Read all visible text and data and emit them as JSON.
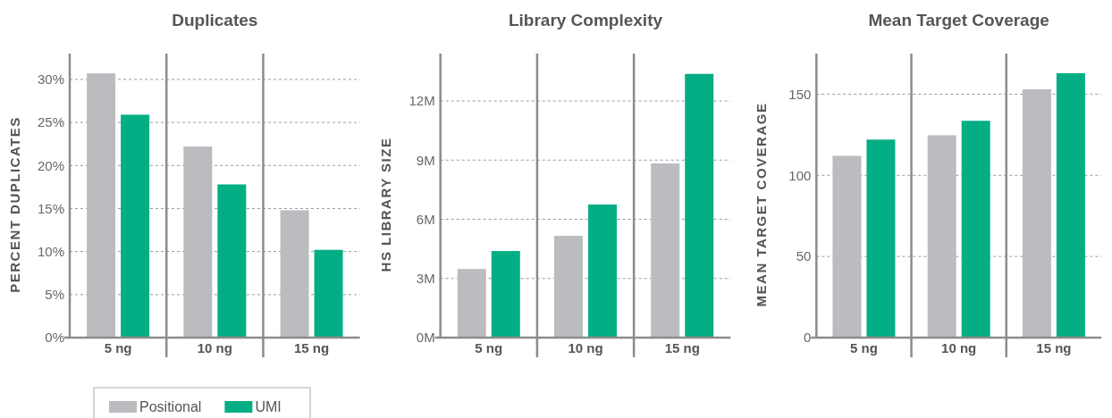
{
  "chart_data": [
    {
      "type": "bar",
      "title": "Duplicates",
      "ylabel": "PERCENT DUPLICATES",
      "categories": [
        "5 ng",
        "10 ng",
        "15 ng"
      ],
      "series": [
        {
          "name": "Positional",
          "color": "#bbbcbf",
          "values": [
            30.7,
            22.2,
            14.8
          ]
        },
        {
          "name": "UMI",
          "color": "#03ae84",
          "values": [
            25.9,
            17.8,
            10.2
          ]
        }
      ],
      "ylim": [
        0,
        33
      ],
      "yticks": [
        {
          "value": 0,
          "label": "0%"
        },
        {
          "value": 5,
          "label": "5%"
        },
        {
          "value": 10,
          "label": "10%"
        },
        {
          "value": 15,
          "label": "15%"
        },
        {
          "value": 20,
          "label": "20%"
        },
        {
          "value": 25,
          "label": "25%"
        },
        {
          "value": 30,
          "label": "30%"
        }
      ],
      "grid": "y",
      "legend": "bottom"
    },
    {
      "type": "bar",
      "title": "Library Complexity",
      "ylabel": "HS LIBRARY SIZE",
      "categories": [
        "5 ng",
        "10 ng",
        "15 ng"
      ],
      "series": [
        {
          "color": "#bbbcbf",
          "values": [
            3.48,
            5.16,
            8.83
          ]
        },
        {
          "color": "#03ae84",
          "values": [
            4.39,
            6.75,
            13.37
          ]
        }
      ],
      "ylim": [
        0,
        14.4
      ],
      "yticks": [
        {
          "value": 0,
          "label": "0M"
        },
        {
          "value": 3,
          "label": "3M"
        },
        {
          "value": 6,
          "label": "6M"
        },
        {
          "value": 9,
          "label": "9M"
        },
        {
          "value": 12,
          "label": "12M"
        }
      ],
      "grid": "y"
    },
    {
      "type": "bar",
      "title": "Mean Target Coverage",
      "ylabel": "MEAN TARGET COVERAGE",
      "categories": [
        "5 ng",
        "10 ng",
        "15 ng"
      ],
      "series": [
        {
          "color": "#bbbcbf",
          "values": [
            112,
            124.7,
            153
          ]
        },
        {
          "color": "#03ae84",
          "values": [
            122,
            133.6,
            162.9
          ]
        }
      ],
      "ylim": [
        0,
        175
      ],
      "yticks": [
        0,
        50,
        100,
        150
      ],
      "grid": "y"
    }
  ]
}
